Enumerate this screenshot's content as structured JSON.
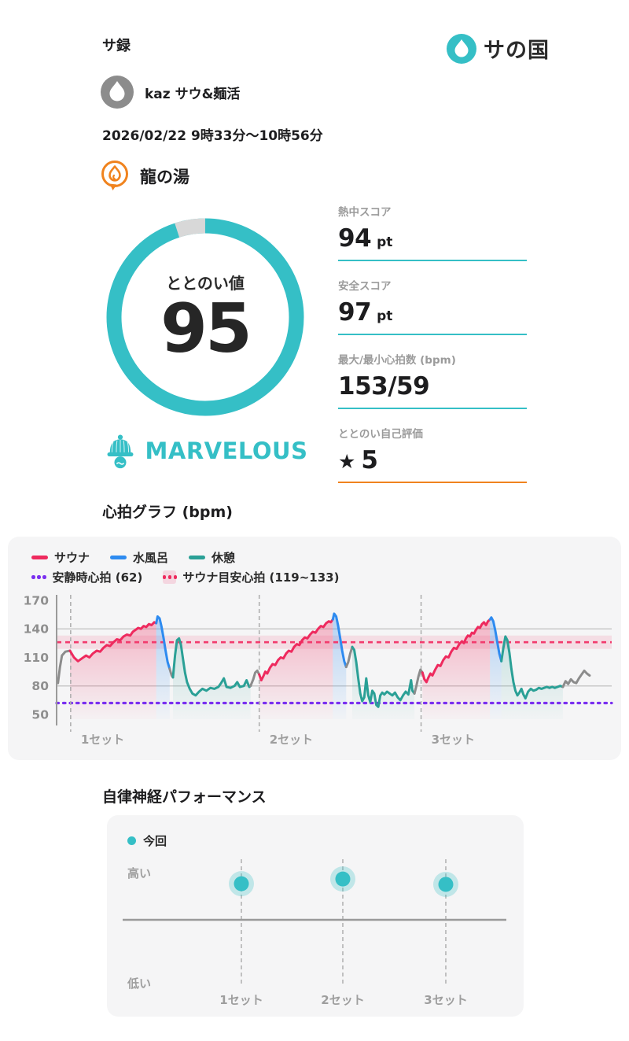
{
  "palette": {
    "accent_teal": "#35bfc6",
    "accent_orange": "#f0831e",
    "sauna_red": "#ee2a5e",
    "cold_blue": "#2e8bf0",
    "rest_teal": "#2aa096",
    "move_gray": "#8c8c8c",
    "resting_purple": "#7a2ff0",
    "target_pink": "#f23b6d",
    "ring_remainder_gray": "#d8d8d8"
  },
  "header": {
    "app_title": "サ録",
    "logo_text": "サの国"
  },
  "user": {
    "name": "kaz サウ&麺活"
  },
  "session": {
    "datetime": "2026/02/22 9時33分〜10時56分",
    "facility": "龍の湯"
  },
  "totonoi": {
    "label": "ととのい値",
    "value": "95",
    "percent": 95,
    "rating": "MARVELOUS"
  },
  "stats": [
    {
      "label": "熱中スコア",
      "value": "94",
      "unit": "pt"
    },
    {
      "label": "安全スコア",
      "value": "97",
      "unit": "pt"
    },
    {
      "label": "最大/最小心拍数 (bpm)",
      "value": "153/59",
      "unit": ""
    },
    {
      "label": "ととのい自己評価",
      "star": "★",
      "value": "5",
      "unit": ""
    }
  ],
  "chart_data": [
    {
      "type": "line",
      "title": "心拍グラフ (bpm)",
      "ylabel": "bpm",
      "ylim": [
        44,
        176
      ],
      "yticks": [
        170,
        140,
        110,
        80,
        50
      ],
      "gridlines": [
        140,
        80
      ],
      "duration_min": 83,
      "legend_position": "top-left",
      "resting_hr": {
        "label": "安静時心拍 (62)",
        "value": 62
      },
      "sauna_target": {
        "label": "サウナ目安心拍 (119~133)",
        "min": 119,
        "max": 133
      },
      "sets": [
        {
          "label": "1セット",
          "start_min": 2.1
        },
        {
          "label": "2セット",
          "start_min": 30.3
        },
        {
          "label": "3セット",
          "start_min": 54.5
        }
      ],
      "series": [
        {
          "name": "サウナ",
          "kind": "sauna"
        },
        {
          "name": "水風呂",
          "kind": "cold"
        },
        {
          "name": "休憩",
          "kind": "rest"
        }
      ],
      "colors": {
        "sauna": "#ee2a5e",
        "cold": "#2e8bf0",
        "rest": "#2aa096",
        "move": "#8c8c8c"
      },
      "max_bpm": 153,
      "min_bpm": 59,
      "segments": [
        {
          "kind": "move",
          "points": [
            [
              0.2,
              83
            ],
            [
              0.5,
              100
            ],
            [
              0.8,
              112
            ],
            [
              1.3,
              116
            ],
            [
              2.0,
              117
            ]
          ]
        },
        {
          "kind": "sauna",
          "points": [
            [
              2.0,
              117
            ],
            [
              2.6,
              110
            ],
            [
              3.2,
              106
            ],
            [
              3.8,
              109
            ],
            [
              4.4,
              112
            ],
            [
              4.9,
              110
            ],
            [
              5.4,
              114
            ],
            [
              6.0,
              117
            ],
            [
              6.5,
              116
            ],
            [
              7.0,
              120
            ],
            [
              7.5,
              123
            ],
            [
              8.0,
              122
            ],
            [
              8.5,
              126
            ],
            [
              9.0,
              129
            ],
            [
              9.5,
              128
            ],
            [
              10.0,
              132
            ],
            [
              10.5,
              134
            ],
            [
              11.0,
              133
            ],
            [
              11.4,
              137
            ],
            [
              11.8,
              139
            ],
            [
              12.2,
              141
            ],
            [
              12.6,
              140
            ],
            [
              13.0,
              143
            ],
            [
              13.4,
              142
            ],
            [
              13.8,
              145
            ],
            [
              14.2,
              144
            ],
            [
              14.6,
              147
            ],
            [
              14.9,
              146
            ]
          ]
        },
        {
          "kind": "cold",
          "points": [
            [
              14.9,
              146
            ],
            [
              15.1,
              153
            ],
            [
              15.4,
              151
            ],
            [
              15.7,
              142
            ],
            [
              16.0,
              130
            ],
            [
              16.3,
              117
            ],
            [
              16.6,
              105
            ],
            [
              16.9,
              98
            ]
          ]
        },
        {
          "kind": "move",
          "points": [
            [
              16.9,
              98
            ],
            [
              17.2,
              91
            ],
            [
              17.4,
              89
            ]
          ]
        },
        {
          "kind": "rest",
          "points": [
            [
              17.4,
              89
            ],
            [
              17.7,
              112
            ],
            [
              18.0,
              128
            ],
            [
              18.3,
              130
            ],
            [
              18.6,
              123
            ],
            [
              18.9,
              108
            ],
            [
              19.2,
              94
            ],
            [
              19.5,
              84
            ],
            [
              19.9,
              77
            ],
            [
              20.3,
              72
            ],
            [
              20.8,
              70
            ],
            [
              21.3,
              74
            ],
            [
              21.8,
              77
            ],
            [
              22.4,
              75
            ],
            [
              23.0,
              78
            ],
            [
              23.6,
              77
            ],
            [
              24.2,
              79
            ],
            [
              24.6,
              83
            ],
            [
              25.0,
              88
            ],
            [
              25.4,
              79
            ],
            [
              26.0,
              78
            ],
            [
              26.6,
              80
            ],
            [
              27.0,
              84
            ],
            [
              27.4,
              79
            ],
            [
              28.0,
              80
            ],
            [
              28.4,
              86
            ],
            [
              28.8,
              79
            ],
            [
              29.0,
              80
            ]
          ]
        },
        {
          "kind": "move",
          "points": [
            [
              29.0,
              80
            ],
            [
              29.4,
              87
            ],
            [
              29.7,
              94
            ],
            [
              30.0,
              96
            ],
            [
              30.3,
              92
            ]
          ]
        },
        {
          "kind": "sauna",
          "points": [
            [
              30.3,
              92
            ],
            [
              30.6,
              86
            ],
            [
              30.9,
              90
            ],
            [
              31.2,
              95
            ],
            [
              31.5,
              93
            ],
            [
              31.9,
              99
            ],
            [
              32.3,
              103
            ],
            [
              32.7,
              102
            ],
            [
              33.1,
              107
            ],
            [
              33.5,
              110
            ],
            [
              33.9,
              109
            ],
            [
              34.3,
              114
            ],
            [
              34.7,
              117
            ],
            [
              35.1,
              116
            ],
            [
              35.5,
              121
            ],
            [
              35.9,
              124
            ],
            [
              36.3,
              123
            ],
            [
              36.7,
              128
            ],
            [
              37.1,
              131
            ],
            [
              37.5,
              130
            ],
            [
              37.9,
              134
            ],
            [
              38.3,
              137
            ],
            [
              38.7,
              136
            ],
            [
              39.1,
              140
            ],
            [
              39.5,
              143
            ],
            [
              39.9,
              142
            ],
            [
              40.3,
              146
            ],
            [
              40.7,
              148
            ],
            [
              41.0,
              147
            ],
            [
              41.3,
              150
            ]
          ]
        },
        {
          "kind": "cold",
          "points": [
            [
              41.3,
              150
            ],
            [
              41.5,
              156
            ],
            [
              41.8,
              153
            ],
            [
              42.1,
              143
            ],
            [
              42.4,
              130
            ],
            [
              42.7,
              117
            ],
            [
              43.0,
              106
            ],
            [
              43.3,
              100
            ]
          ]
        },
        {
          "kind": "move",
          "points": [
            [
              43.3,
              100
            ],
            [
              43.6,
              105
            ],
            [
              43.9,
              114
            ],
            [
              44.2,
              121
            ]
          ]
        },
        {
          "kind": "rest",
          "points": [
            [
              44.2,
              121
            ],
            [
              44.5,
              118
            ],
            [
              44.8,
              105
            ],
            [
              45.1,
              88
            ],
            [
              45.4,
              72
            ],
            [
              45.7,
              64
            ],
            [
              46.0,
              68
            ],
            [
              46.3,
              88
            ],
            [
              46.6,
              70
            ],
            [
              46.9,
              63
            ],
            [
              47.2,
              75
            ],
            [
              47.5,
              72
            ],
            [
              47.8,
              60
            ],
            [
              48.1,
              58
            ],
            [
              48.4,
              70
            ],
            [
              48.7,
              73
            ],
            [
              49.0,
              71
            ],
            [
              49.4,
              74
            ],
            [
              49.8,
              72
            ],
            [
              50.2,
              70
            ],
            [
              50.6,
              73
            ],
            [
              51.0,
              68
            ],
            [
              51.4,
              65
            ],
            [
              51.8,
              70
            ],
            [
              52.2,
              74
            ],
            [
              52.6,
              71
            ],
            [
              53.0,
              86
            ],
            [
              53.2,
              75
            ],
            [
              53.5,
              72
            ]
          ]
        },
        {
          "kind": "move",
          "points": [
            [
              53.5,
              72
            ],
            [
              53.8,
              80
            ],
            [
              54.1,
              90
            ],
            [
              54.4,
              97
            ],
            [
              54.7,
              94
            ]
          ]
        },
        {
          "kind": "sauna",
          "points": [
            [
              54.7,
              94
            ],
            [
              55.0,
              87
            ],
            [
              55.3,
              84
            ],
            [
              55.6,
              89
            ],
            [
              55.9,
              93
            ],
            [
              56.2,
              91
            ],
            [
              56.6,
              97
            ],
            [
              57.0,
              102
            ],
            [
              57.4,
              101
            ],
            [
              57.8,
              107
            ],
            [
              58.2,
              111
            ],
            [
              58.6,
              110
            ],
            [
              59.0,
              116
            ],
            [
              59.4,
              120
            ],
            [
              59.8,
              119
            ],
            [
              60.2,
              124
            ],
            [
              60.6,
              127
            ],
            [
              60.9,
              125
            ],
            [
              61.2,
              130
            ],
            [
              61.5,
              133
            ],
            [
              61.8,
              132
            ],
            [
              62.1,
              136
            ],
            [
              62.4,
              135
            ],
            [
              62.7,
              139
            ],
            [
              63.0,
              142
            ],
            [
              63.3,
              141
            ],
            [
              63.6,
              145
            ],
            [
              63.9,
              147
            ],
            [
              64.2,
              144
            ],
            [
              64.5,
              148
            ],
            [
              64.8,
              150
            ]
          ]
        },
        {
          "kind": "cold",
          "points": [
            [
              64.8,
              150
            ],
            [
              65.0,
              152
            ],
            [
              65.3,
              148
            ],
            [
              65.6,
              138
            ],
            [
              65.9,
              126
            ],
            [
              66.2,
              114
            ],
            [
              66.5,
              106
            ]
          ]
        },
        {
          "kind": "rest",
          "points": [
            [
              66.5,
              106
            ],
            [
              66.8,
              120
            ],
            [
              67.1,
              132
            ],
            [
              67.4,
              128
            ],
            [
              67.7,
              115
            ],
            [
              68.0,
              98
            ],
            [
              68.3,
              84
            ],
            [
              68.6,
              75
            ],
            [
              68.9,
              70
            ],
            [
              69.2,
              73
            ],
            [
              69.5,
              77
            ],
            [
              69.8,
              71
            ],
            [
              70.1,
              67
            ],
            [
              70.5,
              74
            ],
            [
              70.9,
              77
            ],
            [
              71.3,
              75
            ],
            [
              71.7,
              76
            ],
            [
              72.1,
              78
            ],
            [
              72.5,
              77
            ],
            [
              72.9,
              78
            ],
            [
              73.3,
              79
            ],
            [
              73.7,
              78
            ],
            [
              74.1,
              79
            ],
            [
              74.5,
              78
            ],
            [
              74.9,
              79
            ],
            [
              75.3,
              80
            ],
            [
              75.7,
              79
            ]
          ]
        },
        {
          "kind": "move",
          "points": [
            [
              75.7,
              79
            ],
            [
              76.1,
              85
            ],
            [
              76.5,
              82
            ],
            [
              76.9,
              87
            ],
            [
              77.3,
              84
            ],
            [
              77.7,
              83
            ],
            [
              78.1,
              88
            ],
            [
              78.5,
              92
            ],
            [
              78.9,
              96
            ],
            [
              79.3,
              93
            ],
            [
              79.7,
              91
            ]
          ]
        }
      ]
    },
    {
      "type": "scatter",
      "title": "自律神経パフォーマンス",
      "legend_label": "今回",
      "ylabels": {
        "top": "高い",
        "bottom": "低い"
      },
      "categories": [
        "1セット",
        "2セット",
        "3セット"
      ],
      "values": [
        0.54,
        0.61,
        0.53
      ],
      "values_note": "relative height above midline axis, 0 = axis, 1 = top"
    }
  ]
}
